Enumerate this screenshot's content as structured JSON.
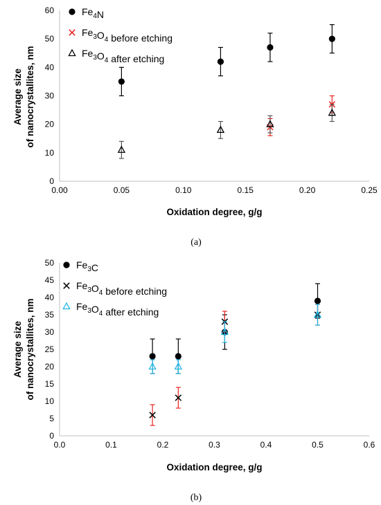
{
  "chart_data": [
    {
      "type": "scatter",
      "caption": "(a)",
      "xlabel": "Oxidation degree, g/g",
      "ylabel": [
        "Average size",
        "of nanocrystallites, nm"
      ],
      "xlim": [
        0,
        0.25
      ],
      "ylim": [
        0,
        60
      ],
      "x_ticks": [
        "0.00",
        "0.05",
        "0.10",
        "0.15",
        "0.20",
        "0.25"
      ],
      "y_ticks": [
        "0",
        "10",
        "20",
        "30",
        "40",
        "50",
        "60"
      ],
      "grid": false,
      "legend_position": "top-left",
      "series": [
        {
          "name": "Fe4N",
          "legend_parts": [
            [
              "Fe",
              ""
            ],
            [
              "4",
              "sub"
            ],
            [
              "N",
              ""
            ]
          ],
          "marker": "circle",
          "color": "#000000",
          "err_color": "#000000",
          "points": [
            {
              "x": 0.05,
              "y": 35,
              "err": 5
            },
            {
              "x": 0.13,
              "y": 42,
              "err": 5
            },
            {
              "x": 0.17,
              "y": 47,
              "err": 5
            },
            {
              "x": 0.22,
              "y": 50,
              "err": 5
            }
          ]
        },
        {
          "name": "Fe3O4 before etching",
          "legend_parts": [
            [
              "Fe",
              ""
            ],
            [
              "3",
              "sub"
            ],
            [
              "O",
              ""
            ],
            [
              "4",
              "sub"
            ],
            [
              " before etching",
              ""
            ]
          ],
          "marker": "x",
          "color": "#e8231e",
          "err_color": "#e8231e",
          "points": [
            {
              "x": 0.17,
              "y": 19,
              "err": 3
            },
            {
              "x": 0.22,
              "y": 27,
              "err": 3
            }
          ]
        },
        {
          "name": "Fe3O4 after etching",
          "legend_parts": [
            [
              "Fe",
              ""
            ],
            [
              "3",
              "sub"
            ],
            [
              "O",
              ""
            ],
            [
              "4",
              "sub"
            ],
            [
              " after etching",
              ""
            ]
          ],
          "marker": "triangle",
          "color": "#000000",
          "err_color": "#555555",
          "points": [
            {
              "x": 0.05,
              "y": 11,
              "err": 3
            },
            {
              "x": 0.13,
              "y": 18,
              "err": 3
            },
            {
              "x": 0.17,
              "y": 20,
              "err": 3
            },
            {
              "x": 0.22,
              "y": 24,
              "err": 3
            }
          ]
        }
      ]
    },
    {
      "type": "scatter",
      "caption": "(b)",
      "xlabel": "Oxidation degree, g/g",
      "ylabel": [
        "Average size",
        "of nanocrystallites, nm"
      ],
      "xlim": [
        0,
        0.6
      ],
      "ylim": [
        0,
        50
      ],
      "x_ticks": [
        "0.0",
        "0.1",
        "0.2",
        "0.3",
        "0.4",
        "0.5",
        "0.6"
      ],
      "y_ticks": [
        "0",
        "5",
        "10",
        "15",
        "20",
        "25",
        "30",
        "35",
        "40",
        "45",
        "50"
      ],
      "grid": false,
      "legend_position": "top-left",
      "series": [
        {
          "name": "Fe3C",
          "legend_parts": [
            [
              "Fe",
              ""
            ],
            [
              "3",
              "sub"
            ],
            [
              "C",
              ""
            ]
          ],
          "marker": "circle",
          "color": "#000000",
          "err_color": "#000000",
          "points": [
            {
              "x": 0.18,
              "y": 23,
              "err": 5
            },
            {
              "x": 0.23,
              "y": 23,
              "err": 5
            },
            {
              "x": 0.32,
              "y": 30,
              "err": 5
            },
            {
              "x": 0.5,
              "y": 39,
              "err": 5
            }
          ]
        },
        {
          "name": "Fe3O4 before etching",
          "legend_parts": [
            [
              "Fe",
              ""
            ],
            [
              "3",
              "sub"
            ],
            [
              "O",
              ""
            ],
            [
              "4",
              "sub"
            ],
            [
              " before etching",
              ""
            ]
          ],
          "marker": "x",
          "color": "#000000",
          "err_color": "#e8231e",
          "points": [
            {
              "x": 0.18,
              "y": 6,
              "err": 3
            },
            {
              "x": 0.23,
              "y": 11,
              "err": 3
            },
            {
              "x": 0.32,
              "y": 33,
              "err": 3
            },
            {
              "x": 0.5,
              "y": 35,
              "err": 3
            }
          ]
        },
        {
          "name": "Fe3O4 after etching",
          "legend_parts": [
            [
              "Fe",
              ""
            ],
            [
              "3",
              "sub"
            ],
            [
              "O",
              ""
            ],
            [
              "4",
              "sub"
            ],
            [
              " after etching",
              ""
            ]
          ],
          "marker": "triangle",
          "color": "#1fb5e6",
          "err_color": "#1fb5e6",
          "points": [
            {
              "x": 0.18,
              "y": 20,
              "err": 2
            },
            {
              "x": 0.23,
              "y": 20,
              "err": 2
            },
            {
              "x": 0.32,
              "y": 30,
              "err": 3
            },
            {
              "x": 0.5,
              "y": 35,
              "err": 3
            }
          ]
        }
      ]
    }
  ]
}
